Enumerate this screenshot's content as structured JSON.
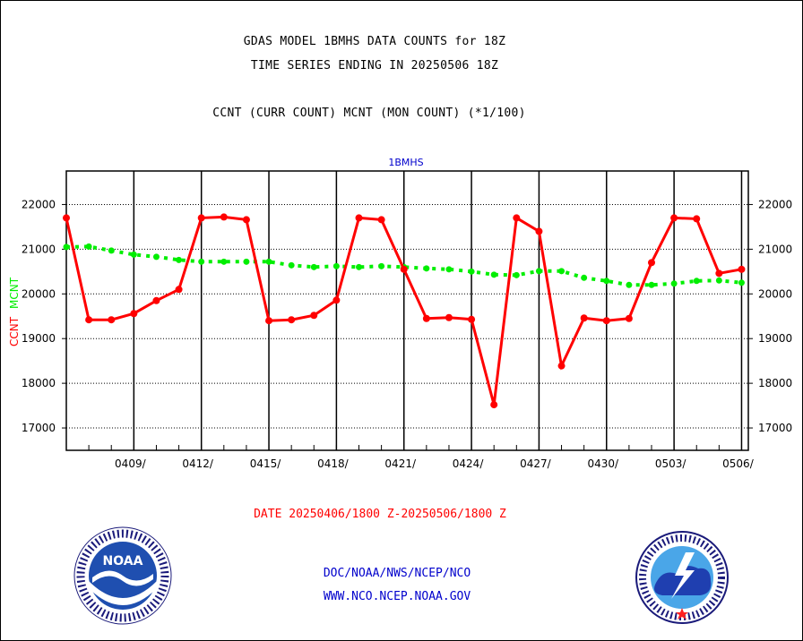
{
  "title_line1": "GDAS MODEL 1BMHS DATA COUNTS for 18Z",
  "title_line2": "TIME SERIES ENDING IN 20250506 18Z",
  "subtitle": "CCNT (CURR COUNT) MCNT (MON COUNT) (*1/100)",
  "date_range": "DATE 20250406/1800 Z-20250506/1800 Z",
  "credit_line1": "DOC/NOAA/NWS/NCEP/NCO",
  "credit_line2": "WWW.NCO.NCEP.NOAA.GOV",
  "logo_left": {
    "name": "noaa-logo",
    "text": "NOAA"
  },
  "logo_right": {
    "name": "nws-logo"
  },
  "colors": {
    "ccnt": "#ff0000",
    "mcnt": "#00ee00",
    "label_blue": "#0000cc",
    "date_red": "#ff0000"
  },
  "chart_data": {
    "type": "line",
    "title": "1BMHS",
    "ylabel": "CCNT MCNT",
    "ylim": [
      16500,
      22750
    ],
    "yticks": [
      17000,
      18000,
      19000,
      20000,
      21000,
      22000
    ],
    "ytick_labels": [
      "17000",
      "18000",
      "19000",
      "20000",
      "21000",
      "22000"
    ],
    "x_day_range": [
      0,
      30.3
    ],
    "xticks": [
      {
        "day": 3,
        "label": "0409/"
      },
      {
        "day": 6,
        "label": "0412/"
      },
      {
        "day": 9,
        "label": "0415/"
      },
      {
        "day": 12,
        "label": "0418/"
      },
      {
        "day": 15,
        "label": "0421/"
      },
      {
        "day": 18,
        "label": "0424/"
      },
      {
        "day": 21,
        "label": "0427/"
      },
      {
        "day": 24,
        "label": "0430/"
      },
      {
        "day": 27,
        "label": "0503/"
      },
      {
        "day": 30,
        "label": "0506/"
      }
    ],
    "grid": true,
    "series": [
      {
        "name": "CCNT",
        "color": "#ff0000",
        "x": [
          0,
          1,
          2,
          3,
          4,
          5,
          6,
          7,
          8,
          9,
          10,
          11,
          12,
          13,
          14,
          15,
          16,
          17,
          18,
          19,
          20,
          21,
          22,
          23,
          24,
          25,
          26,
          27,
          28,
          29,
          30
        ],
        "values": [
          21700,
          19420,
          19420,
          19560,
          19850,
          20100,
          21700,
          21720,
          21660,
          19400,
          19420,
          19520,
          19860,
          21700,
          21660,
          20550,
          19450,
          19470,
          19430,
          17520,
          21700,
          21400,
          18390,
          19460,
          19400,
          19450,
          20700,
          21700,
          21680,
          20460,
          20550
        ]
      },
      {
        "name": "MCNT",
        "color": "#00ee00",
        "x": [
          0,
          1,
          2,
          3,
          4,
          5,
          6,
          7,
          8,
          9,
          10,
          11,
          12,
          13,
          14,
          15,
          16,
          17,
          18,
          19,
          20,
          21,
          22,
          23,
          24,
          25,
          26,
          27,
          28,
          29,
          30
        ],
        "values": [
          21050,
          21060,
          20970,
          20880,
          20830,
          20760,
          20720,
          20720,
          20720,
          20720,
          20640,
          20600,
          20620,
          20600,
          20620,
          20600,
          20570,
          20550,
          20500,
          20430,
          20420,
          20510,
          20510,
          20360,
          20290,
          20200,
          20200,
          20230,
          20290,
          20300,
          20250
        ]
      }
    ]
  }
}
